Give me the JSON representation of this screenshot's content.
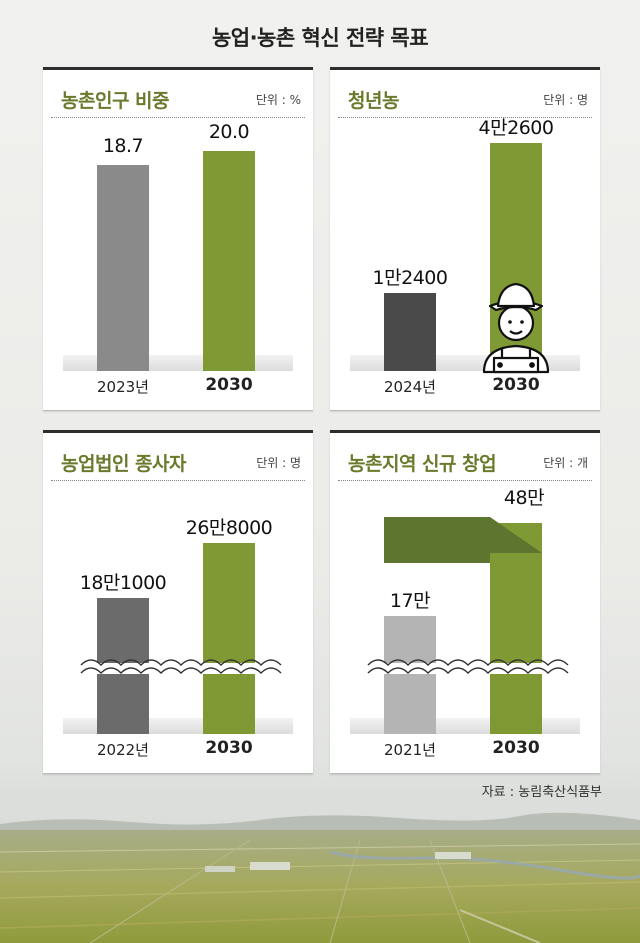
{
  "title": "농업·농촌 혁신 전략 목표",
  "source": "자료 : 농림축산식품부",
  "colors": {
    "accent_green": "#7f9a35",
    "dark_green": "#5e7530",
    "title_green": "#6a7a2c",
    "gray": "#8a8a8a",
    "dark_gray": "#4a4a4a",
    "light_gray": "#b4b4b4"
  },
  "chart_data": [
    {
      "type": "bar",
      "title": "농촌인구 비중",
      "unit": "단위 : %",
      "categories": [
        "2023년",
        "2030"
      ],
      "values": [
        18.7,
        20.0
      ],
      "labels": [
        "18.7",
        "20.0"
      ],
      "colors": [
        "#8a8a8a",
        "#7f9a35"
      ],
      "ylim": [
        0,
        22
      ]
    },
    {
      "type": "bar",
      "title": "청년농",
      "unit": "단위 : 명",
      "categories": [
        "2024년",
        "2030"
      ],
      "values": [
        12400,
        42600
      ],
      "labels": [
        "1만2400",
        "4만2600"
      ],
      "colors": [
        "#4a4a4a",
        "#7f9a35"
      ],
      "ylim": [
        0,
        45000
      ],
      "icon": "young-farmer-icon"
    },
    {
      "type": "bar",
      "title": "농업법인 종사자",
      "unit": "단위 : 명",
      "categories": [
        "2022년",
        "2030"
      ],
      "values": [
        181000,
        268000
      ],
      "labels": [
        "18만1000",
        "26만8000"
      ],
      "colors": [
        "#6b6b6b",
        "#7f9a35"
      ],
      "axis_break": true
    },
    {
      "type": "bar",
      "title": "농촌지역 신규 창업",
      "unit": "단위 : 개",
      "categories": [
        "2021년",
        "2030"
      ],
      "values": [
        170000,
        480000
      ],
      "labels": [
        "17만",
        "48만"
      ],
      "colors": [
        "#b4b4b4",
        "#7f9a35"
      ],
      "axis_break": true
    }
  ]
}
